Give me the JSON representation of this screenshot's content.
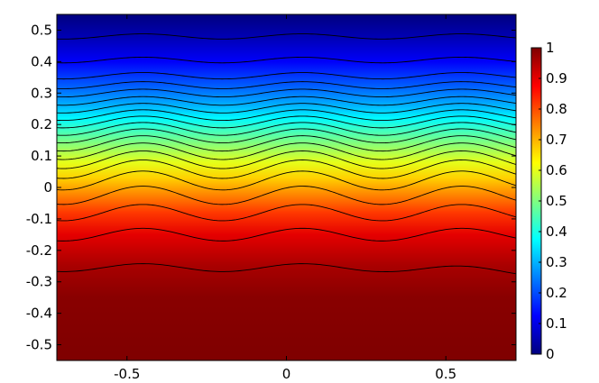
{
  "chart_data": {
    "type": "heatmap",
    "title": "",
    "xlabel": "",
    "ylabel": "",
    "xlim": [
      -0.72,
      0.72
    ],
    "ylim": [
      -0.55,
      0.55
    ],
    "x_ticks": [
      -0.5,
      0,
      0.5
    ],
    "x_tick_labels": [
      "-0.5",
      "0",
      "0.5"
    ],
    "y_ticks": [
      0.5,
      0.4,
      0.3,
      0.2,
      0.1,
      0,
      -0.1,
      -0.2,
      -0.3,
      -0.4,
      -0.5
    ],
    "y_tick_labels": [
      "0.5",
      "0.4",
      "0.3",
      "0.2",
      "0.1",
      "0",
      "-0.1",
      "-0.2",
      "-0.3",
      "-0.4",
      "-0.5"
    ],
    "colorbar": {
      "min": 0,
      "max": 1,
      "ticks": [
        1,
        0.9,
        0.8,
        0.7,
        0.6,
        0.5,
        0.4,
        0.3,
        0.2,
        0.1,
        0
      ],
      "tick_labels": [
        "1",
        "0.9",
        "0.8",
        "0.7",
        "0.6",
        "0.5",
        "0.4",
        "0.3",
        "0.2",
        "0.1",
        "0"
      ],
      "colormap": [
        "#00007f",
        "#0000ff",
        "#00ffff",
        "#ffff00",
        "#ff0000",
        "#7f0000"
      ]
    },
    "field_profile": {
      "y": [
        0.55,
        0.48,
        0.4,
        0.32,
        0.26,
        0.22,
        0.18,
        0.13,
        0.08,
        0.03,
        -0.02,
        -0.08,
        -0.15,
        -0.25,
        -0.35,
        -0.55
      ],
      "value": [
        0.0,
        0.05,
        0.12,
        0.22,
        0.3,
        0.37,
        0.44,
        0.52,
        0.6,
        0.67,
        0.74,
        0.82,
        0.9,
        0.96,
        0.99,
        1.0
      ]
    },
    "contours": [
      {
        "level": 0.05,
        "y0": 0.48
      },
      {
        "level": 0.1,
        "y0": 0.405
      },
      {
        "level": 0.15,
        "y0": 0.355
      },
      {
        "level": 0.2,
        "y0": 0.325
      },
      {
        "level": 0.25,
        "y0": 0.3
      },
      {
        "level": 0.3,
        "y0": 0.275
      },
      {
        "level": 0.35,
        "y0": 0.252
      },
      {
        "level": 0.4,
        "y0": 0.23
      },
      {
        "level": 0.45,
        "y0": 0.208
      },
      {
        "level": 0.5,
        "y0": 0.186
      },
      {
        "level": 0.55,
        "y0": 0.164
      },
      {
        "level": 0.6,
        "y0": 0.14
      },
      {
        "level": 0.65,
        "y0": 0.115
      },
      {
        "level": 0.7,
        "y0": 0.088
      },
      {
        "level": 0.75,
        "y0": 0.058
      },
      {
        "level": 0.8,
        "y0": 0.022
      },
      {
        "level": 0.85,
        "y0": -0.025
      },
      {
        "level": 0.9,
        "y0": -0.08
      },
      {
        "level": 0.95,
        "y0": -0.15
      },
      {
        "level": 0.99,
        "y0": -0.255
      }
    ]
  }
}
